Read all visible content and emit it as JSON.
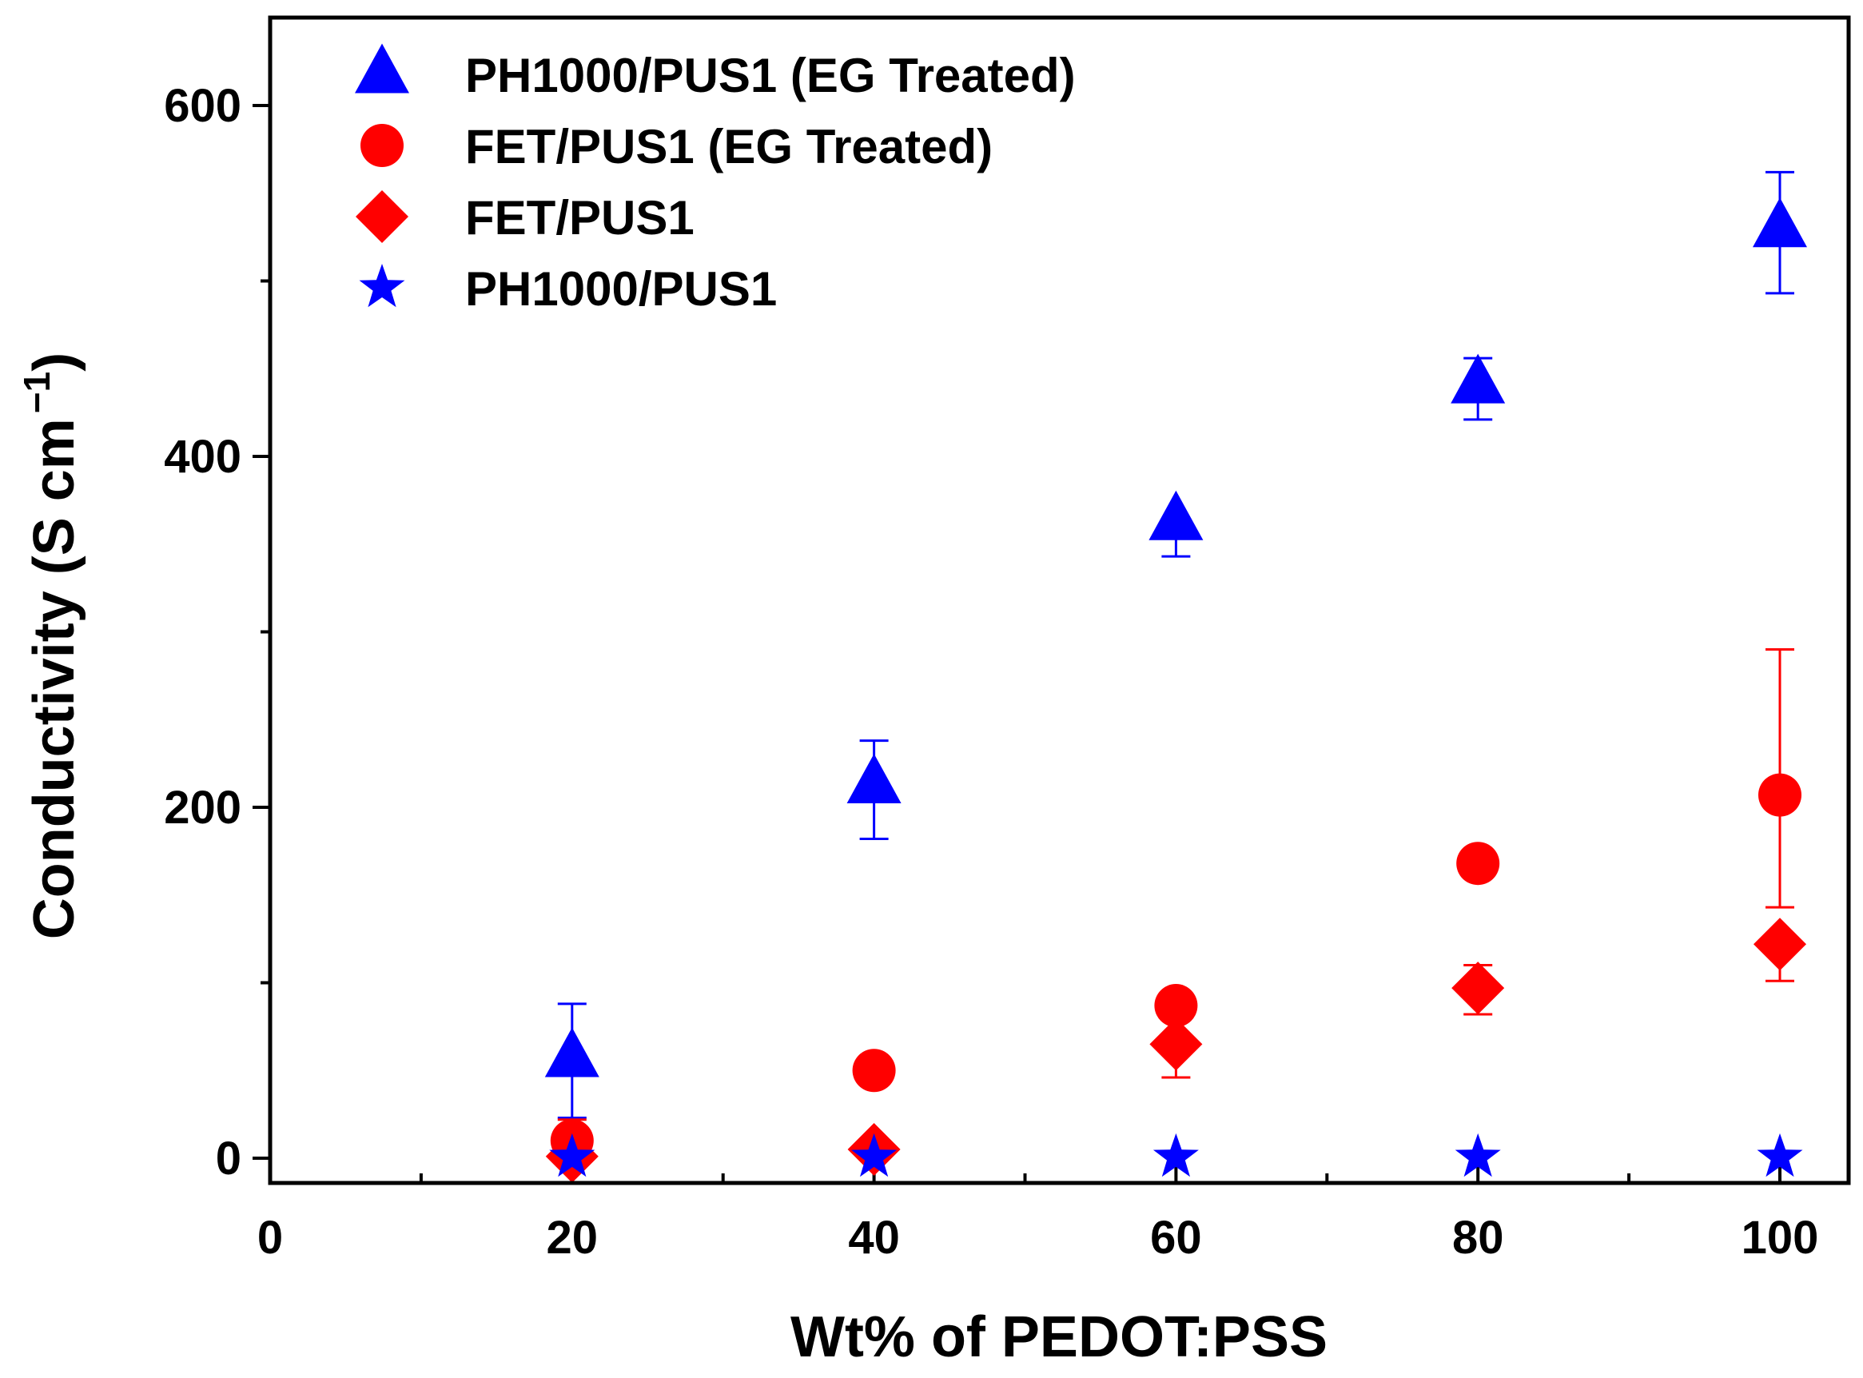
{
  "chart_data": {
    "type": "scatter",
    "title": "",
    "xlabel": "Wt% of PEDOT:PSS",
    "ylabel": "Conductivity (S cm",
    "ylabel_superscript": "−1",
    "ylabel_close": ")",
    "xlim": [
      0,
      105
    ],
    "ylim": [
      -10,
      650
    ],
    "xticks": [
      0,
      20,
      40,
      60,
      80,
      100
    ],
    "xtick_labels": [
      "0",
      "20",
      "40",
      "60",
      "80",
      "100"
    ],
    "yticks": [
      0,
      200,
      400,
      600
    ],
    "ytick_labels": [
      "0",
      "200",
      "400",
      "600"
    ],
    "x_minor_ticks": [
      10,
      30,
      50,
      70,
      90
    ],
    "y_minor_ticks": [
      100,
      300,
      500
    ],
    "legend_position": "top-left",
    "series": [
      {
        "name": "PH1000/PUS1 (EG Treated)",
        "marker": "triangle",
        "color": "#0000ff",
        "x": [
          20,
          40,
          60,
          80,
          100
        ],
        "y": [
          57,
          213,
          363,
          441,
          530
        ],
        "err_upper": [
          88,
          238,
          363,
          456,
          562
        ],
        "err_lower": [
          23,
          182,
          343,
          421,
          493
        ]
      },
      {
        "name": "FET/PUS1 (EG Treated)",
        "marker": "circle",
        "color": "#ff0000",
        "x": [
          20,
          40,
          60,
          80,
          100
        ],
        "y": [
          10,
          50,
          87,
          168,
          207
        ],
        "err_upper": [
          22,
          50,
          87,
          168,
          290
        ],
        "err_lower": [
          3,
          50,
          87,
          168,
          143
        ]
      },
      {
        "name": "FET/PUS1",
        "marker": "diamond",
        "color": "#ff0000",
        "x": [
          20,
          40,
          60,
          80,
          100
        ],
        "y": [
          1,
          5,
          65,
          97,
          122
        ],
        "err_upper": [
          1,
          5,
          65,
          110,
          122
        ],
        "err_lower": [
          1,
          5,
          46,
          82,
          101
        ]
      },
      {
        "name": "PH1000/PUS1",
        "marker": "star",
        "color": "#0000ff",
        "x": [
          20,
          40,
          60,
          80,
          100
        ],
        "y": [
          0.5,
          0.5,
          0.5,
          0.5,
          0.5
        ],
        "err_upper": [
          0.5,
          0.5,
          0.5,
          0.5,
          0.5
        ],
        "err_lower": [
          0.5,
          0.5,
          0.5,
          0.5,
          0.5
        ]
      }
    ]
  }
}
